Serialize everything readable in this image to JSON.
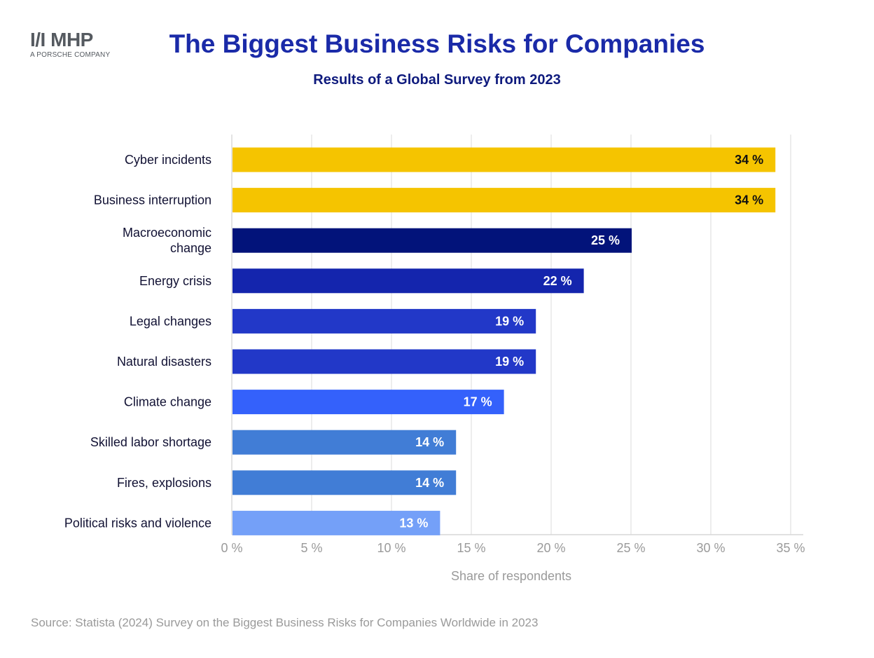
{
  "logo": {
    "mark": "I/I MHP",
    "sub": "A PORSCHE COMPANY"
  },
  "title": "The Biggest Business Risks for Companies",
  "subtitle": "Results of a Global Survey from 2023",
  "source": "Source: Statista (2024) Survey on the Biggest Business Risks for Companies Worldwide in 2023",
  "chart_data": {
    "type": "bar",
    "orientation": "horizontal",
    "categories": [
      "Cyber incidents",
      "Business interruption",
      "Macroeconomic change",
      "Energy crisis",
      "Legal changes",
      "Natural disasters",
      "Climate change",
      "Skilled labor shortage",
      "Fires, explosions",
      "Political risks and violence"
    ],
    "values": [
      34,
      34,
      25,
      22,
      19,
      19,
      17,
      14,
      14,
      13
    ],
    "value_labels": [
      "34 %",
      "34 %",
      "25 %",
      "22 %",
      "19 %",
      "19 %",
      "17 %",
      "14 %",
      "14 %",
      "13 %"
    ],
    "bar_colors": [
      "#f5c400",
      "#f5c400",
      "#02137a",
      "#1425ad",
      "#2238c8",
      "#2238c8",
      "#3461fb",
      "#417dd6",
      "#417dd6",
      "#74a0f8"
    ],
    "label_colors": [
      "#111111",
      "#111111",
      "#ffffff",
      "#ffffff",
      "#ffffff",
      "#ffffff",
      "#ffffff",
      "#ffffff",
      "#ffffff",
      "#ffffff"
    ],
    "xlabel": "Share of respondents",
    "ylabel": "",
    "xlim": [
      0,
      35
    ],
    "xticks": [
      0,
      5,
      10,
      15,
      20,
      25,
      30,
      35
    ],
    "xtick_labels": [
      "0 %",
      "5 %",
      "10 %",
      "15 %",
      "20 %",
      "25 %",
      "30 %",
      "35 %"
    ],
    "grid": "vertical",
    "legend": "none"
  }
}
